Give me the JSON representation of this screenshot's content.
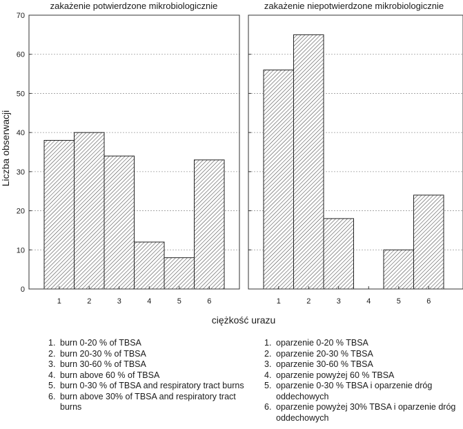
{
  "chart_data": {
    "type": "bar",
    "ylabel": "Liczba obserwacji",
    "xlabel": "ciężkość urazu",
    "ylim": [
      0,
      70
    ],
    "yticks": [
      0,
      10,
      20,
      30,
      40,
      50,
      60,
      70
    ],
    "grid": true,
    "panels": [
      {
        "title": "zakażenie potwierdzone mikrobiologicznie",
        "categories": [
          "1",
          "2",
          "3",
          "4",
          "5",
          "6"
        ],
        "values": [
          38,
          40,
          34,
          12,
          8,
          33
        ]
      },
      {
        "title": "zakażenie niepotwierdzone mikrobiologicznie",
        "categories": [
          "1",
          "2",
          "3",
          "4",
          "5",
          "6"
        ],
        "values": [
          56,
          65,
          18,
          0,
          10,
          24
        ]
      }
    ]
  },
  "legend_left": [
    {
      "num": "1.",
      "text": "burn 0-20 % of TBSA"
    },
    {
      "num": "2.",
      "text": "burn 20-30 % of TBSA"
    },
    {
      "num": "3.",
      "text": "burn 30-60 % of TBSA"
    },
    {
      "num": "4.",
      "text": "burn above 60 % of TBSA"
    },
    {
      "num": "5.",
      "text": "burn 0-30 % of TBSA and respiratory tract burns"
    },
    {
      "num": "6.",
      "text": "burn above 30% of TBSA and respiratory tract burns"
    }
  ],
  "legend_right": [
    {
      "num": "1.",
      "text": "oparzenie 0-20 % TBSA"
    },
    {
      "num": "2.",
      "text": "oparzenie 20-30 % TBSA"
    },
    {
      "num": "3.",
      "text": "oparzenie 30-60 % TBSA"
    },
    {
      "num": "4.",
      "text": "oparzenie powyżej 60 % TBSA"
    },
    {
      "num": "5.",
      "text": "oparzenie 0-30 % TBSA i oparzenie dróg oddechowych"
    },
    {
      "num": "6.",
      "text": "oparzenie powyżej 30% TBSA i oparzenie dróg oddechowych"
    }
  ]
}
